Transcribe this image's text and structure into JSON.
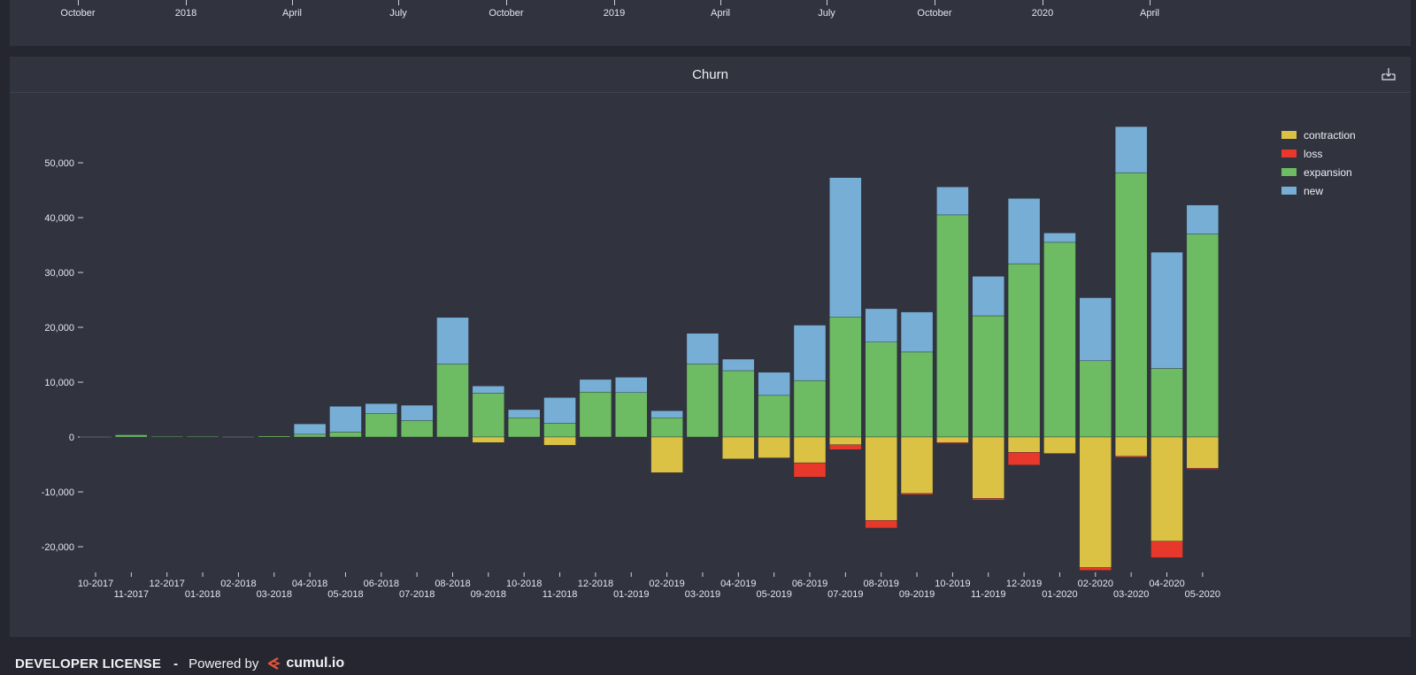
{
  "top_axis": {
    "ticks": [
      "October",
      "2018",
      "April",
      "July",
      "October",
      "2019",
      "April",
      "July",
      "October",
      "2020",
      "April"
    ]
  },
  "chart_panel": {
    "title": "Churn",
    "download_icon": "download-icon"
  },
  "footer": {
    "license": "DEVELOPER LICENSE",
    "separator": "-",
    "powered_by": "Powered by",
    "brand": "cumul.io",
    "brand_icon": "cumulio-logo-icon"
  },
  "chart_data": {
    "type": "bar",
    "stacked": true,
    "title": "Churn",
    "xlabel": "",
    "ylabel": "",
    "ylim": [
      -24500,
      56500
    ],
    "yticks": [
      -20000,
      -10000,
      0,
      10000,
      20000,
      30000,
      40000,
      50000
    ],
    "ytick_labels": [
      "-20,000",
      "-10,000",
      "0",
      "10,000",
      "20,000",
      "30,000",
      "40,000",
      "50,000"
    ],
    "grid": false,
    "legend_position": "top-right",
    "categories": [
      "10-2017",
      "11-2017",
      "12-2017",
      "01-2018",
      "02-2018",
      "03-2018",
      "04-2018",
      "05-2018",
      "06-2018",
      "07-2018",
      "08-2018",
      "09-2018",
      "10-2018",
      "11-2018",
      "12-2018",
      "01-2019",
      "02-2019",
      "03-2019",
      "04-2019",
      "05-2019",
      "06-2019",
      "07-2019",
      "08-2019",
      "09-2019",
      "10-2019",
      "11-2019",
      "12-2019",
      "01-2020",
      "02-2020",
      "03-2020",
      "04-2020",
      "05-2020"
    ],
    "series": [
      {
        "name": "contraction",
        "color": "#dcc244",
        "values": [
          0,
          0,
          0,
          0,
          0,
          0,
          0,
          0,
          0,
          0,
          0,
          -1000,
          0,
          -1500,
          0,
          0,
          -6500,
          0,
          -4000,
          -3800,
          -4700,
          -1400,
          -15200,
          -10300,
          -1000,
          -11200,
          -2800,
          -3000,
          -23800,
          -3500,
          -19000,
          -5700
        ]
      },
      {
        "name": "loss",
        "color": "#e8382b",
        "values": [
          0,
          0,
          0,
          0,
          0,
          0,
          0,
          0,
          0,
          0,
          0,
          0,
          0,
          0,
          0,
          0,
          0,
          0,
          0,
          0,
          -2600,
          -900,
          -1400,
          -200,
          -200,
          -300,
          -2300,
          0,
          -500,
          -200,
          -3000,
          -200
        ]
      },
      {
        "name": "expansion",
        "color": "#6dbc63",
        "values": [
          0,
          400,
          100,
          100,
          0,
          200,
          500,
          900,
          4300,
          3000,
          13300,
          8000,
          3500,
          2500,
          8200,
          8100,
          3500,
          13300,
          12100,
          7600,
          10300,
          21900,
          17300,
          15500,
          40500,
          22100,
          31600,
          35500,
          13900,
          48200,
          12500,
          37000
        ]
      },
      {
        "name": "new",
        "color": "#77aed5",
        "values": [
          0,
          0,
          0,
          0,
          0,
          0,
          1900,
          4700,
          1800,
          2800,
          8500,
          1300,
          1500,
          4700,
          2300,
          2800,
          1300,
          5600,
          2100,
          4200,
          10100,
          25400,
          6100,
          7300,
          5100,
          7200,
          11900,
          1700,
          11500,
          8400,
          21200,
          5300
        ]
      }
    ]
  }
}
